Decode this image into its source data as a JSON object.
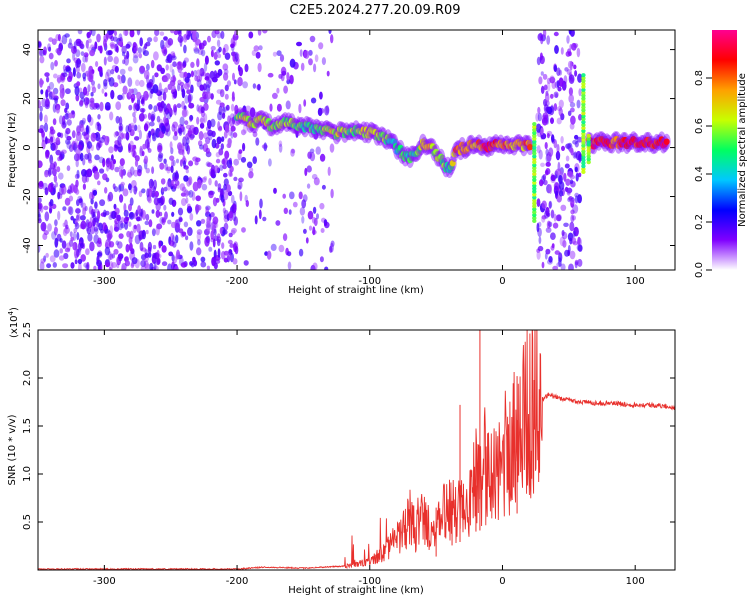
{
  "title": "C2E5.2024.277.20.09.R09",
  "chart_data": [
    {
      "type": "heatmap",
      "xlabel": "Height of straight line (km)",
      "ylabel": "Frequency (Hz)",
      "xlim": [
        -350,
        130
      ],
      "ylim": [
        -50,
        48
      ],
      "xticks": [
        -300,
        -200,
        -100,
        0,
        100
      ],
      "yticks": [
        -40,
        -20,
        0,
        20,
        40
      ],
      "grid": false,
      "colorbar": {
        "label": "Normalized spectral amplitude",
        "range": [
          0.0,
          1.0
        ],
        "ticks": [
          0.0,
          0.2,
          0.4,
          0.6,
          0.8
        ],
        "colormap": [
          "#ffffff",
          "#8000ff",
          "#0000ff",
          "#00c8ff",
          "#00ff60",
          "#c8ff00",
          "#ffa000",
          "#ff0000",
          "#ff0090"
        ]
      },
      "noise_regions": [
        {
          "x": [
            -350,
            -200
          ],
          "density": 1.0
        },
        {
          "x": [
            -200,
            -128
          ],
          "density": 0.25
        },
        {
          "x": [
            26,
            59
          ],
          "density": 0.85
        }
      ],
      "signal_track": [
        {
          "x": -200,
          "y": 13,
          "a": 0.55
        },
        {
          "x": -195,
          "y": 12,
          "a": 0.6
        },
        {
          "x": -190,
          "y": 10,
          "a": 0.65
        },
        {
          "x": -182,
          "y": 11,
          "a": 0.6
        },
        {
          "x": -175,
          "y": 9,
          "a": 0.62
        },
        {
          "x": -165,
          "y": 10,
          "a": 0.55
        },
        {
          "x": -155,
          "y": 9,
          "a": 0.5
        },
        {
          "x": -145,
          "y": 8,
          "a": 0.48
        },
        {
          "x": -135,
          "y": 7,
          "a": 0.6
        },
        {
          "x": -125,
          "y": 6,
          "a": 0.62
        },
        {
          "x": -115,
          "y": 7,
          "a": 0.55
        },
        {
          "x": -108,
          "y": 7,
          "a": 0.58
        },
        {
          "x": -100,
          "y": 6,
          "a": 0.68
        },
        {
          "x": -92,
          "y": 5,
          "a": 0.58
        },
        {
          "x": -85,
          "y": 3,
          "a": 0.5
        },
        {
          "x": -78,
          "y": -1,
          "a": 0.45
        },
        {
          "x": -72,
          "y": -4,
          "a": 0.5
        },
        {
          "x": -66,
          "y": -3,
          "a": 0.42
        },
        {
          "x": -60,
          "y": 2,
          "a": 0.7
        },
        {
          "x": -55,
          "y": 1,
          "a": 0.75
        },
        {
          "x": -50,
          "y": -3,
          "a": 0.58
        },
        {
          "x": -45,
          "y": -6,
          "a": 0.52
        },
        {
          "x": -40,
          "y": -9,
          "a": 0.48
        },
        {
          "x": -35,
          "y": -1,
          "a": 0.82
        },
        {
          "x": -28,
          "y": 0,
          "a": 0.72
        },
        {
          "x": -20,
          "y": 1,
          "a": 0.7
        },
        {
          "x": -12,
          "y": 0,
          "a": 0.88
        },
        {
          "x": -5,
          "y": 1,
          "a": 0.8
        },
        {
          "x": 5,
          "y": 1,
          "a": 0.75
        },
        {
          "x": 15,
          "y": 1,
          "a": 0.7
        },
        {
          "x": 22,
          "y": 1,
          "a": 0.85
        },
        {
          "x": 65,
          "y": 2,
          "a": 0.85
        },
        {
          "x": 75,
          "y": 2,
          "a": 0.9
        },
        {
          "x": 85,
          "y": 2,
          "a": 0.78
        },
        {
          "x": 95,
          "y": 2,
          "a": 0.9
        },
        {
          "x": 105,
          "y": 2,
          "a": 0.85
        },
        {
          "x": 115,
          "y": 2,
          "a": 0.9
        },
        {
          "x": 125,
          "y": 2,
          "a": 0.88
        }
      ],
      "vertical_streaks": [
        {
          "x": 24,
          "y": [
            -30,
            10
          ],
          "a": 0.55
        },
        {
          "x": 61,
          "y": [
            -10,
            30
          ],
          "a": 0.55
        },
        {
          "x": 65,
          "y": [
            -6,
            6
          ],
          "a": 0.55
        }
      ]
    },
    {
      "type": "line",
      "xlabel": "Height of straight line (km)",
      "ylabel": "SNR (10 * v/v)",
      "y_multiplier": "(x10",
      "y_multiplier_exponent": "4",
      "y_multiplier_close": ")",
      "xlim": [
        -350,
        130
      ],
      "ylim": [
        0,
        2.5
      ],
      "xticks": [
        -300,
        -200,
        -100,
        0,
        100
      ],
      "yticks": [
        0.5,
        1.0,
        1.5,
        2.0,
        2.5
      ],
      "grid": false,
      "color": "#e8302c",
      "series": [
        {
          "x": [
            -350,
            -300,
            -250,
            -200,
            -180,
            -150,
            -120,
            -100,
            -90,
            -80,
            -70,
            -65,
            -60,
            -55,
            -50,
            -45,
            -40,
            -35,
            -30,
            -25,
            -20,
            -15,
            -10,
            -5,
            0,
            5,
            10,
            15,
            20,
            25,
            30,
            35,
            40,
            50,
            60,
            70,
            80,
            90,
            100,
            110,
            120,
            130
          ],
          "values": [
            0.01,
            0.01,
            0.01,
            0.01,
            0.03,
            0.02,
            0.04,
            0.08,
            0.18,
            0.3,
            0.5,
            0.4,
            0.55,
            0.45,
            0.35,
            0.6,
            0.7,
            0.55,
            0.85,
            0.7,
            1.0,
            1.05,
            0.9,
            1.0,
            1.2,
            1.25,
            1.45,
            1.55,
            1.65,
            1.75,
            1.78,
            1.82,
            1.8,
            1.77,
            1.75,
            1.74,
            1.74,
            1.73,
            1.72,
            1.72,
            1.71,
            1.69
          ]
        }
      ],
      "spikes": [
        {
          "x": -17,
          "y": 2.5
        },
        {
          "x": 11,
          "y": 2.02
        },
        {
          "x": -32,
          "y": 1.72
        },
        {
          "x": -50,
          "y": 0.65
        },
        {
          "x": -38,
          "y": 0.72
        },
        {
          "x": -20,
          "y": 0.88
        }
      ]
    }
  ]
}
